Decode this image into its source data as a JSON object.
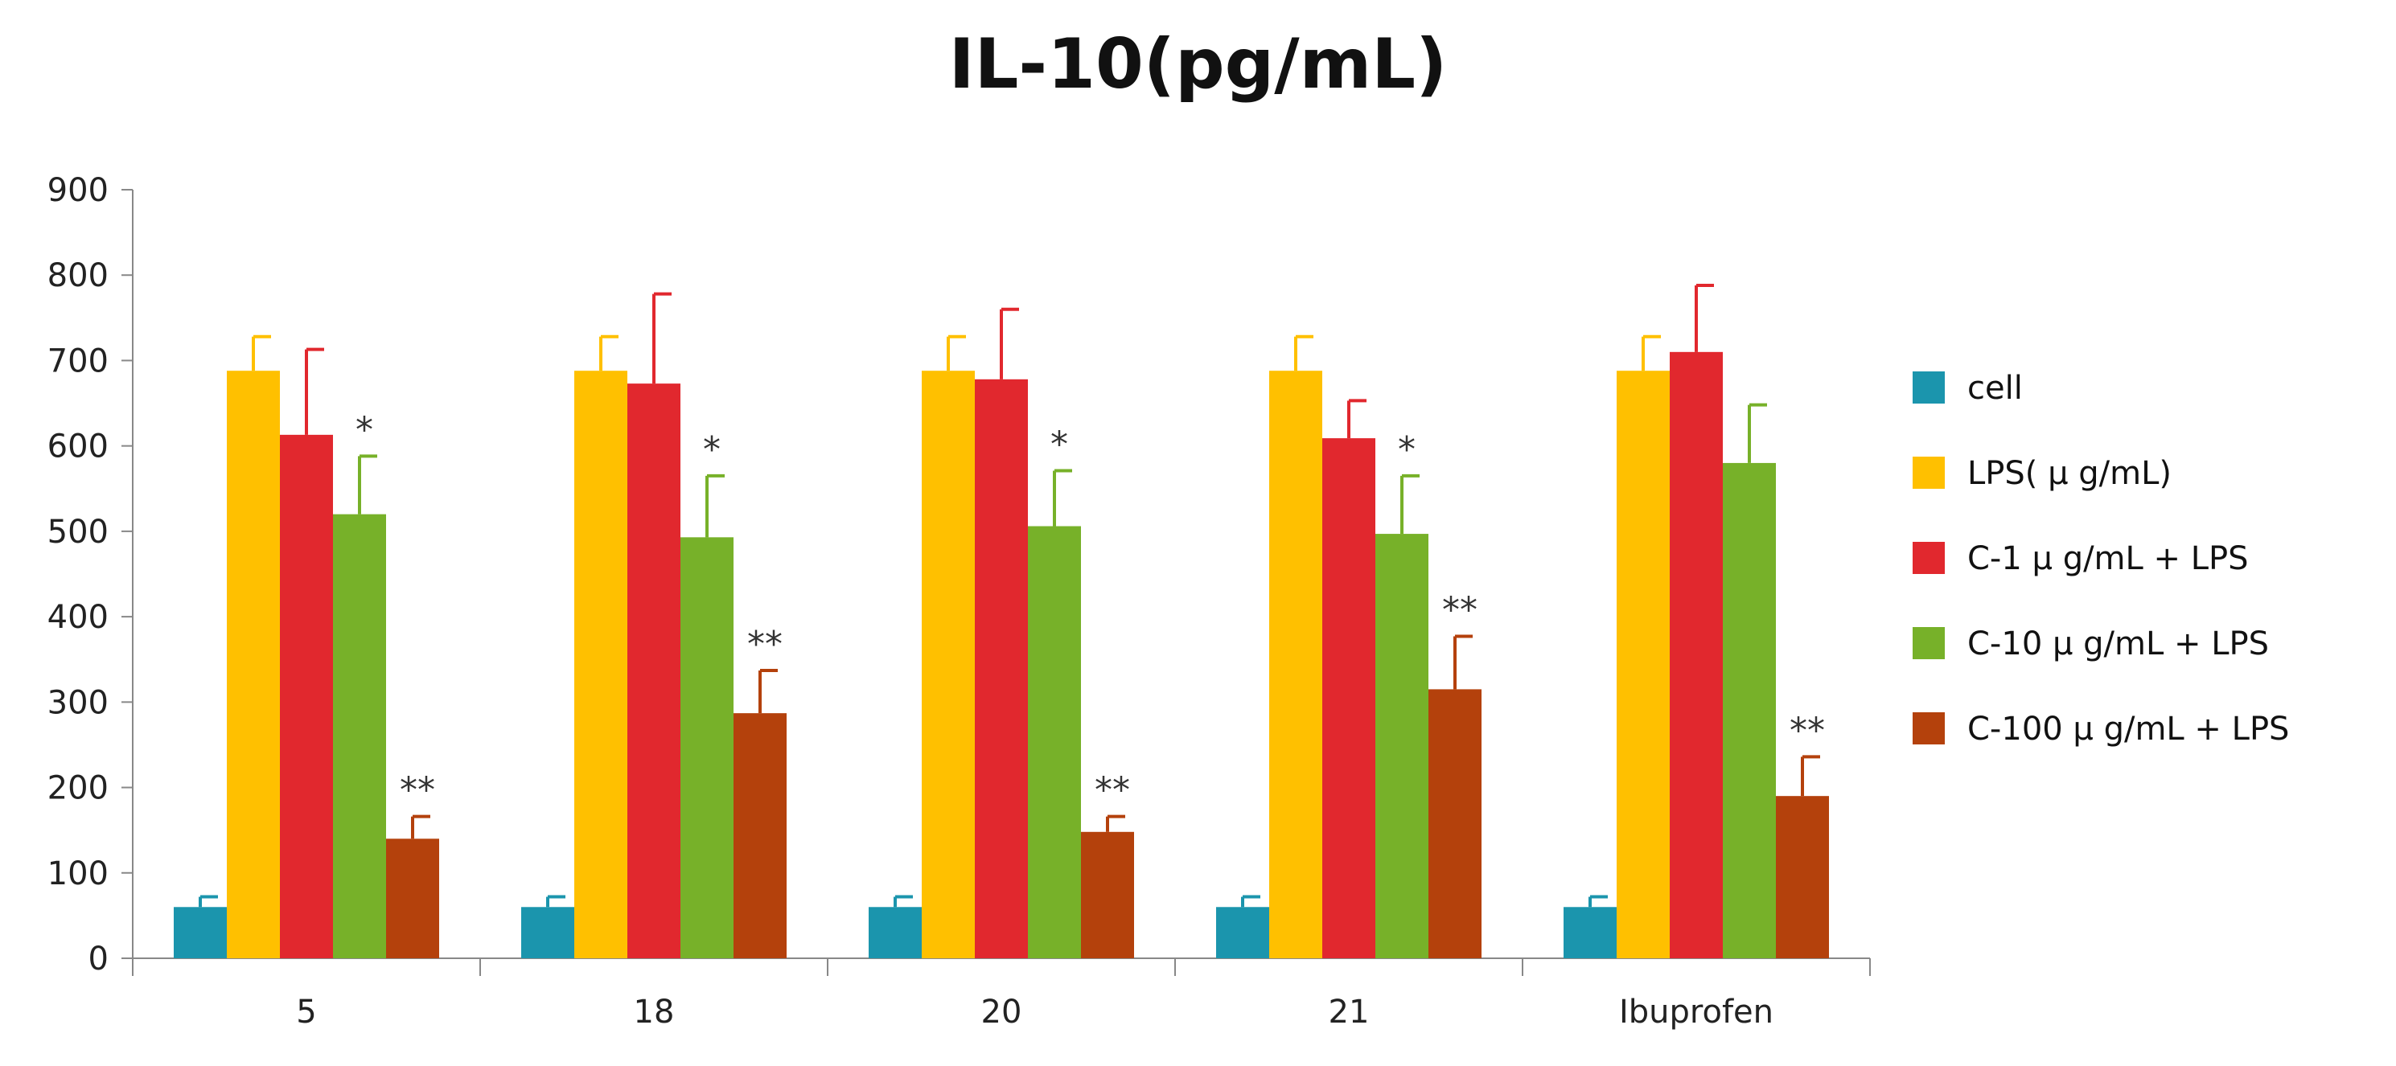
{
  "chart_data": {
    "type": "bar",
    "title": "IL-10(pg/mL)",
    "xlabel": "",
    "ylabel": "",
    "ylim": [
      0,
      900
    ],
    "yticks": [
      0,
      100,
      200,
      300,
      400,
      500,
      600,
      700,
      800,
      900
    ],
    "categories": [
      "5",
      "18",
      "20",
      "21",
      "Ibuprofen"
    ],
    "legend_position": "right",
    "series": [
      {
        "name": "cell",
        "color": "#1b95ad",
        "values": [
          60,
          60,
          60,
          60,
          60
        ],
        "errors": [
          12,
          12,
          12,
          12,
          12
        ],
        "sig": [
          "",
          "",
          "",
          "",
          ""
        ]
      },
      {
        "name": "LPS( μ g/mL)",
        "color": "#ffc000",
        "values": [
          688,
          688,
          688,
          688,
          688
        ],
        "errors": [
          40,
          40,
          40,
          40,
          40
        ],
        "sig": [
          "",
          "",
          "",
          "",
          ""
        ]
      },
      {
        "name": "C-1  μ g/mL + LPS",
        "color": "#e1282e",
        "values": [
          613,
          673,
          678,
          609,
          710
        ],
        "errors": [
          100,
          105,
          82,
          44,
          78
        ],
        "sig": [
          "",
          "",
          "",
          "",
          ""
        ]
      },
      {
        "name": "C-10  μ g/mL + LPS",
        "color": "#77b129",
        "values": [
          520,
          493,
          506,
          497,
          580
        ],
        "errors": [
          68,
          72,
          65,
          68,
          68
        ],
        "sig": [
          "*",
          "*",
          "*",
          "*",
          ""
        ]
      },
      {
        "name": "C-100  μ g/mL + LPS",
        "color": "#b4410c",
        "values": [
          140,
          287,
          148,
          315,
          190
        ],
        "errors": [
          26,
          50,
          18,
          62,
          46
        ],
        "sig": [
          "**",
          "**",
          "**",
          "**",
          "**"
        ]
      }
    ]
  }
}
